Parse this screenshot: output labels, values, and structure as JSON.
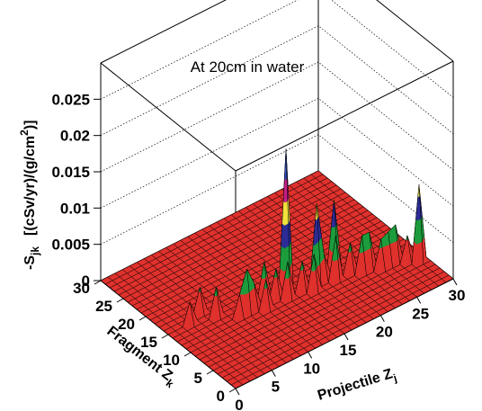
{
  "chart_data": {
    "type": "surface3d",
    "title": "At 20cm in water",
    "x_label": {
      "main": "Projectile Z",
      "sub": "j"
    },
    "y_label": {
      "main": "Fragment Z",
      "sub": "k"
    },
    "z_label": {
      "main": "-S",
      "sub": "jk",
      "unit": "[(cSv/yr)/(g/cm",
      "sup": "2",
      "end": ")]"
    },
    "xlim": [
      0,
      30
    ],
    "ylim": [
      0,
      30
    ],
    "zlim": [
      0,
      0.03
    ],
    "xticks": [
      0,
      5,
      10,
      15,
      20,
      25,
      30
    ],
    "yticks": [
      0,
      5,
      10,
      15,
      20,
      25,
      30
    ],
    "zticks": [
      0,
      0.005,
      0.01,
      0.015,
      0.02,
      0.025
    ],
    "grid": true,
    "color_levels": [
      0.003,
      0.006,
      0.009,
      0.012,
      0.015
    ],
    "level_colors": [
      "#e0302c",
      "#1c9c3c",
      "#2c2c96",
      "#f0e23c",
      "#c21e86",
      "#2f4fbf"
    ],
    "points": {
      "x": [
        15,
        18,
        21,
        29,
        12,
        9,
        6,
        24,
        26,
        27,
        11,
        14,
        17,
        20,
        23,
        25,
        3,
        5,
        8,
        10,
        13,
        16,
        19,
        22,
        28
      ],
      "y": [
        13,
        11,
        12,
        6,
        13,
        12,
        14,
        9,
        8,
        8,
        11,
        11,
        10,
        10,
        9,
        8,
        15,
        16,
        12,
        12,
        12,
        11,
        11,
        10,
        7
      ],
      "z": [
        0.019,
        0.011,
        0.0095,
        0.0105,
        0.005,
        0.006,
        0.004,
        0.005,
        0.0045,
        0.005,
        0.004,
        0.005,
        0.005,
        0.006,
        0.005,
        0.004,
        0.003,
        0.0035,
        0.003,
        0.0035,
        0.004,
        0.004,
        0.0035,
        0.004,
        0.0035
      ]
    }
  }
}
